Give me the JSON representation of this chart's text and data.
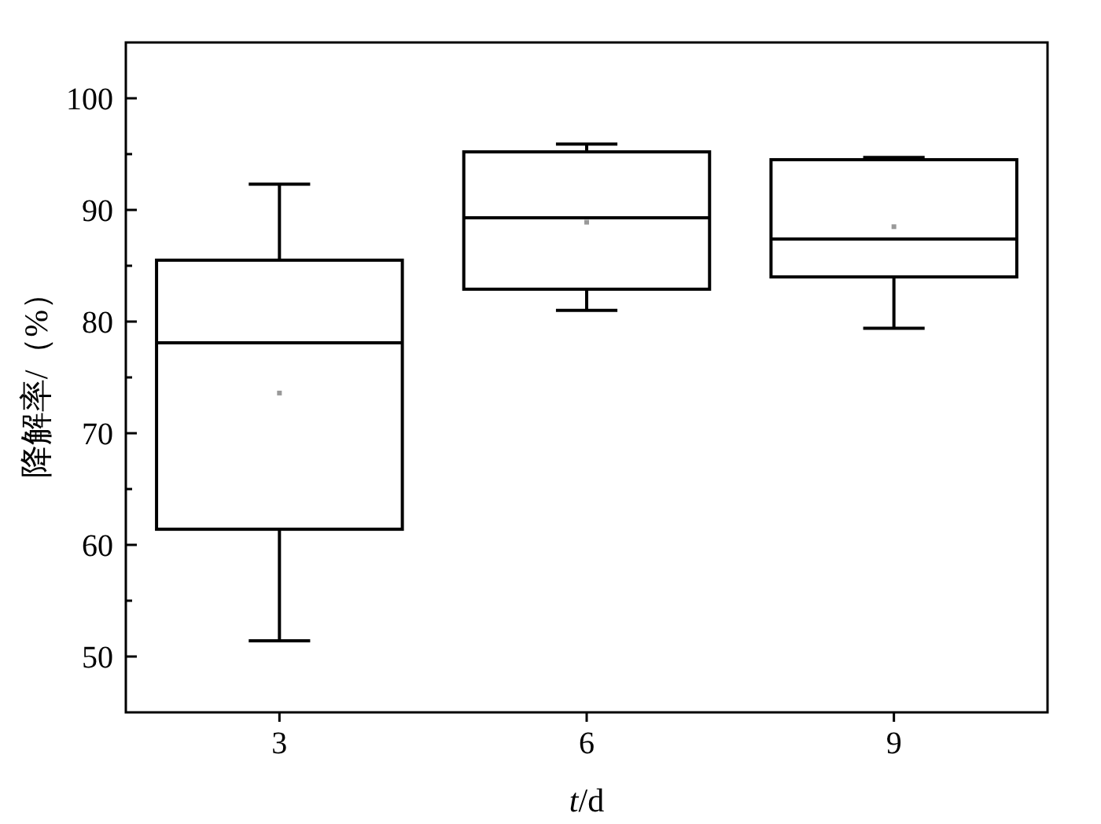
{
  "chart_data": {
    "type": "box",
    "xlabel": "*t*/d",
    "ylabel": "降解率/（%）",
    "categories": [
      "3",
      "6",
      "9"
    ],
    "boxes": [
      {
        "low": 51.4,
        "q1": 61.4,
        "median": 78.1,
        "q3": 85.5,
        "high": 92.3,
        "mean": 73.6
      },
      {
        "low": 81.0,
        "q1": 82.9,
        "median": 89.3,
        "q3": 95.2,
        "high": 95.9,
        "mean": 88.9
      },
      {
        "low": 79.4,
        "q1": 84.0,
        "median": 87.4,
        "q3": 94.5,
        "high": 94.7,
        "mean": 88.5
      }
    ],
    "ylim": [
      45,
      105
    ],
    "yticks": [
      50,
      {
        "value": 55,
        "label": null
      },
      60,
      {
        "value": 65,
        "label": null
      },
      70,
      {
        "value": 75,
        "label": null
      },
      80,
      {
        "value": 85,
        "label": null
      },
      90,
      {
        "value": 95,
        "label": null
      },
      100
    ]
  }
}
